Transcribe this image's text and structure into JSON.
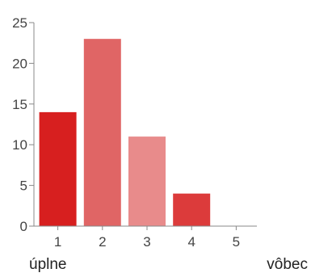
{
  "chart_data": {
    "type": "bar",
    "categories": [
      "1",
      "2",
      "3",
      "4",
      "5"
    ],
    "values": [
      14,
      23,
      11,
      4,
      0
    ],
    "colors": [
      "#d71f1f",
      "#e06565",
      "#e88b8b",
      "#dc3b3b",
      "#dc3b3b"
    ],
    "ylim": [
      0,
      25
    ],
    "yticks": [
      "0",
      "5",
      "10",
      "15",
      "20",
      "25"
    ],
    "grid": false,
    "scale_labels": {
      "low": "úplne",
      "high": "vôbec"
    }
  }
}
